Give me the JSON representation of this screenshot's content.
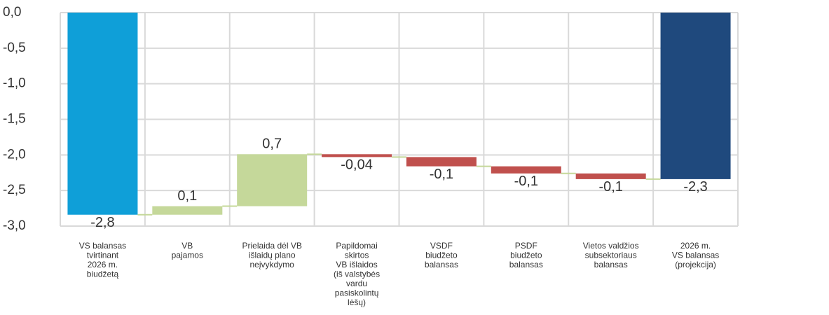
{
  "chart_data": {
    "type": "waterfall",
    "categories": [
      [
        "VS balansas",
        "tvirtinant",
        "2026 m.",
        "biudžetą"
      ],
      [
        "VB",
        "pajamos"
      ],
      [
        "Prielaida dėl VB",
        "išlaidų plano",
        "neįvykdymo"
      ],
      [
        "Papildomai",
        "skirtos",
        "VB išlaidos",
        "(iš valstybės",
        "vardu",
        "pasiskolintų",
        "lėšų)"
      ],
      [
        "VSDF",
        "biudžeto",
        "balansas"
      ],
      [
        "PSDF",
        "biudžeto",
        "balansas"
      ],
      [
        "Vietos valdžios",
        "subsektoriaus",
        "balansas"
      ],
      [
        "2026 m.",
        "VS balansas",
        "(projekcija)"
      ]
    ],
    "values": [
      -2.84,
      0.12,
      0.73,
      -0.04,
      -0.13,
      -0.1,
      -0.08,
      -2.34
    ],
    "value_labels": [
      "-2,8",
      "0,1",
      "0,7",
      "-0,04",
      "-0,1",
      "-0,1",
      "-0,1",
      "-2,3"
    ],
    "totals": [
      true,
      false,
      false,
      false,
      false,
      false,
      false,
      true
    ],
    "colors": [
      "#0f9fd8",
      "#c5d89a",
      "#c5d89a",
      "#c0504d",
      "#c0504d",
      "#c0504d",
      "#c0504d",
      "#1f497d"
    ],
    "connector_color": "#c5d89a",
    "ylim": [
      -3,
      0
    ],
    "yticks": [
      {
        "value": 0,
        "label": "0,0"
      },
      {
        "value": -0.5,
        "label": "-0,5"
      },
      {
        "value": -1,
        "label": "-1,0"
      },
      {
        "value": -1.5,
        "label": "-1,5"
      },
      {
        "value": -2,
        "label": "-2,0"
      },
      {
        "value": -2.5,
        "label": "-2,5"
      },
      {
        "value": -3,
        "label": "-3,0"
      }
    ],
    "grid": true
  }
}
